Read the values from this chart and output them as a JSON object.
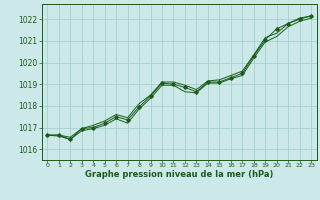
{
  "title": "Graphe pression niveau de la mer (hPa)",
  "bg_color": "#cce8e8",
  "grid_color": "#99cccc",
  "line_color": "#1a5c1a",
  "xlim": [
    -0.5,
    23.5
  ],
  "ylim": [
    1015.5,
    1022.7
  ],
  "yticks": [
    1016,
    1017,
    1018,
    1019,
    1020,
    1021,
    1022
  ],
  "xticks": [
    0,
    1,
    2,
    3,
    4,
    5,
    6,
    7,
    8,
    9,
    10,
    11,
    12,
    13,
    14,
    15,
    16,
    17,
    18,
    19,
    20,
    21,
    22,
    23
  ],
  "y_smooth": [
    1016.65,
    1016.65,
    1016.55,
    1016.95,
    1017.1,
    1017.3,
    1017.6,
    1017.45,
    1018.1,
    1018.5,
    1019.1,
    1019.1,
    1018.95,
    1018.75,
    1019.15,
    1019.2,
    1019.4,
    1019.6,
    1020.35,
    1021.15,
    1021.35,
    1021.8,
    1022.05,
    1022.15
  ],
  "y_marker": [
    1016.65,
    1016.65,
    1016.45,
    1016.95,
    1017.0,
    1017.2,
    1017.5,
    1017.35,
    1017.95,
    1018.45,
    1019.05,
    1019.0,
    1018.85,
    1018.65,
    1019.1,
    1019.1,
    1019.3,
    1019.5,
    1020.3,
    1021.05,
    1021.55,
    1021.8,
    1022.0,
    1022.15
  ],
  "y_lower": [
    1016.65,
    1016.6,
    1016.45,
    1016.85,
    1016.95,
    1017.1,
    1017.4,
    1017.2,
    1017.85,
    1018.35,
    1018.95,
    1018.95,
    1018.65,
    1018.6,
    1019.05,
    1019.05,
    1019.25,
    1019.4,
    1020.2,
    1020.95,
    1021.2,
    1021.65,
    1021.9,
    1022.05
  ]
}
